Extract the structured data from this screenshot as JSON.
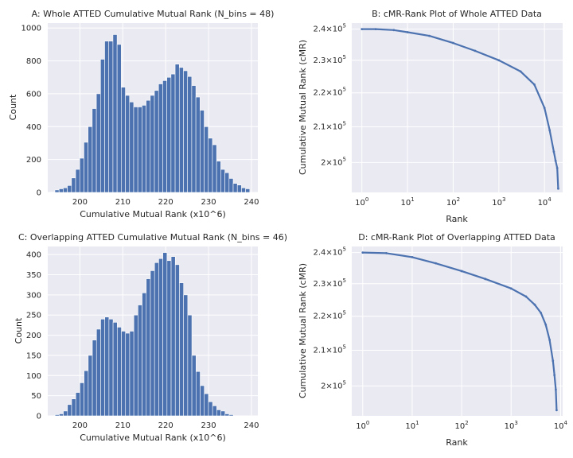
{
  "chart_data": [
    {
      "type": "bar",
      "title": "A: Whole ATTED Cumulative Mutual Rank (N_bins = 48)",
      "xlabel": "Cumulative Mutual Rank (x10^6)",
      "ylabel": "Count",
      "xlim": [
        192.5,
        241.5
      ],
      "ylim": [
        0,
        1030
      ],
      "xticks": [
        200,
        210,
        220,
        230,
        240
      ],
      "yticks": [
        0,
        200,
        400,
        600,
        800,
        1000
      ],
      "bin_start": 193.2,
      "bin_width": 0.967,
      "values": [
        2,
        15,
        22,
        28,
        42,
        88,
        140,
        208,
        305,
        400,
        510,
        600,
        810,
        920,
        920,
        960,
        900,
        640,
        590,
        550,
        520,
        520,
        530,
        560,
        590,
        620,
        660,
        680,
        700,
        720,
        780,
        760,
        740,
        705,
        650,
        580,
        500,
        400,
        330,
        290,
        190,
        140,
        120,
        85,
        55,
        45,
        28,
        22
      ]
    },
    {
      "type": "line",
      "title": "B: cMR-Rank Plot of Whole ATTED Data",
      "xlabel": "Rank",
      "ylabel": "Cumulative Mutual Rank (cMR)",
      "xscale": "log",
      "yscale": "log",
      "xlim": [
        0.6,
        25000
      ],
      "ylim": [
        192000,
        242000
      ],
      "xticks": [
        {
          "value": 1,
          "base": "10",
          "exp": "0"
        },
        {
          "value": 10,
          "base": "10",
          "exp": "1"
        },
        {
          "value": 100,
          "base": "10",
          "exp": "2"
        },
        {
          "value": 1000,
          "base": "10",
          "exp": "3"
        },
        {
          "value": 10000,
          "base": "10",
          "exp": "4"
        }
      ],
      "yticks": [
        {
          "value": 200000,
          "mant": "2",
          "exp": "5"
        },
        {
          "value": 210000,
          "mant": "2.1",
          "exp": "5"
        },
        {
          "value": 220000,
          "mant": "2.2",
          "exp": "5"
        },
        {
          "value": 230000,
          "mant": "2.3",
          "exp": "5"
        },
        {
          "value": 240000,
          "mant": "2.4",
          "exp": "5"
        }
      ],
      "x": [
        1,
        2,
        5,
        10,
        30,
        100,
        300,
        1000,
        3000,
        6000,
        10000,
        13000,
        16000,
        17500,
        19000,
        20000
      ],
      "y": [
        240000,
        240000,
        239700,
        239000,
        237800,
        235500,
        233000,
        230000,
        226500,
        222500,
        215500,
        209000,
        203000,
        200500,
        198500,
        193000
      ]
    },
    {
      "type": "bar",
      "title": "C: Overlapping ATTED Cumulative Mutual Rank (N_bins = 46)",
      "xlabel": "Cumulative Mutual Rank (x10^6)",
      "ylabel": "Count",
      "xlim": [
        192.5,
        241.5
      ],
      "ylim": [
        0,
        420
      ],
      "xticks": [
        200,
        210,
        220,
        230,
        240
      ],
      "yticks": [
        0,
        50,
        100,
        150,
        200,
        250,
        300,
        350,
        400
      ],
      "bin_start": 194.2,
      "bin_width": 0.967,
      "values": [
        3,
        5,
        12,
        28,
        42,
        58,
        82,
        112,
        150,
        188,
        215,
        240,
        245,
        240,
        232,
        220,
        210,
        205,
        210,
        250,
        275,
        305,
        340,
        360,
        380,
        390,
        405,
        385,
        395,
        375,
        330,
        300,
        250,
        150,
        110,
        75,
        55,
        35,
        25,
        15,
        12,
        5,
        3,
        0,
        0,
        0
      ]
    },
    {
      "type": "line",
      "title": "D: cMR-Rank Plot of Overlapping ATTED Data",
      "xlabel": "Rank",
      "ylabel": "Cumulative Mutual Rank (cMR)",
      "xscale": "log",
      "yscale": "log",
      "xlim": [
        0.6,
        11000
      ],
      "ylim": [
        192000,
        242000
      ],
      "xticks": [
        {
          "value": 1,
          "base": "10",
          "exp": "0"
        },
        {
          "value": 10,
          "base": "10",
          "exp": "1"
        },
        {
          "value": 100,
          "base": "10",
          "exp": "2"
        },
        {
          "value": 1000,
          "base": "10",
          "exp": "3"
        },
        {
          "value": 10000,
          "base": "10",
          "exp": "4"
        }
      ],
      "yticks": [
        {
          "value": 200000,
          "mant": "2",
          "exp": "5"
        },
        {
          "value": 210000,
          "mant": "2.1",
          "exp": "5"
        },
        {
          "value": 220000,
          "mant": "2.2",
          "exp": "5"
        },
        {
          "value": 230000,
          "mant": "2.3",
          "exp": "5"
        },
        {
          "value": 240000,
          "mant": "2.4",
          "exp": "5"
        }
      ],
      "x": [
        1,
        3,
        10,
        30,
        100,
        300,
        1000,
        2000,
        3000,
        4000,
        5000,
        6000,
        7000,
        7500,
        8000,
        8300
      ],
      "y": [
        240000,
        239800,
        238500,
        236500,
        234000,
        231500,
        228500,
        226000,
        223500,
        221000,
        217500,
        213000,
        207000,
        203000,
        199000,
        193500
      ]
    }
  ],
  "style": {
    "bar_color": "#4c72b0",
    "line_color": "#4c72b0",
    "axes_bg": "#eaeaf2",
    "grid_color": "#ffffff",
    "grid": true
  }
}
